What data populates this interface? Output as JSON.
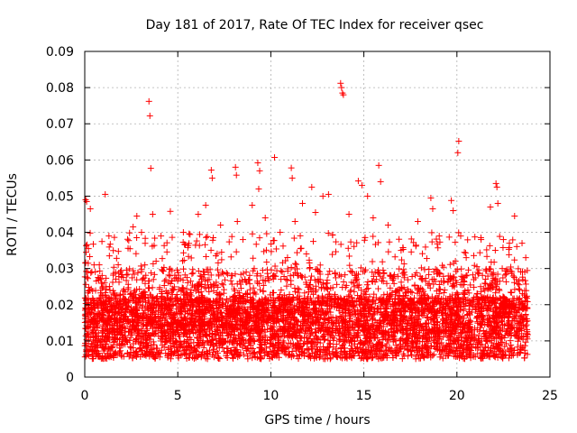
{
  "chart_data": {
    "type": "scatter",
    "title": "Day 181 of 2017, Rate Of TEC Index for receiver qsec",
    "xlabel": "GPS time / hours",
    "ylabel": "ROTI / TECUs",
    "xlim": [
      0,
      25
    ],
    "ylim": [
      0,
      0.09
    ],
    "x_ticks": [
      0,
      5,
      10,
      15,
      20,
      25
    ],
    "y_ticks": [
      0,
      0.01,
      0.02,
      0.03,
      0.04,
      0.05,
      0.06,
      0.07,
      0.08,
      0.09
    ],
    "x_tick_labels": [
      "0",
      "5",
      "10",
      "15",
      "20",
      "25"
    ],
    "y_tick_labels": [
      "0",
      "0.01",
      "0.02",
      "0.03",
      "0.04",
      "0.05",
      "0.06",
      "0.07",
      "0.08",
      "0.09"
    ],
    "grid": true,
    "marker": "plus",
    "marker_color": "#ff0000",
    "series": [
      {
        "points": [
          [
            0.05,
            0.049
          ],
          [
            0.1,
            0.0485
          ],
          [
            0.2,
            0.0355
          ],
          [
            0.3,
            0.0465
          ],
          [
            0.5,
            0.031
          ],
          [
            1.1,
            0.0505
          ],
          [
            1.3,
            0.039
          ],
          [
            2.6,
            0.0415
          ],
          [
            2.8,
            0.0445
          ],
          [
            3.05,
            0.04
          ],
          [
            3.45,
            0.0762
          ],
          [
            3.5,
            0.0722
          ],
          [
            3.55,
            0.0577
          ],
          [
            3.65,
            0.045
          ],
          [
            4.1,
            0.039
          ],
          [
            4.6,
            0.0458
          ],
          [
            5.3,
            0.04
          ],
          [
            6.1,
            0.045
          ],
          [
            6.5,
            0.0475
          ],
          [
            6.8,
            0.0572
          ],
          [
            6.85,
            0.055
          ],
          [
            7.3,
            0.042
          ],
          [
            8.1,
            0.058
          ],
          [
            8.15,
            0.0558
          ],
          [
            8.2,
            0.043
          ],
          [
            8.5,
            0.038
          ],
          [
            9.0,
            0.0475
          ],
          [
            9.3,
            0.0592
          ],
          [
            9.4,
            0.057
          ],
          [
            9.35,
            0.052
          ],
          [
            9.7,
            0.044
          ],
          [
            10.2,
            0.0607
          ],
          [
            10.5,
            0.04
          ],
          [
            11.1,
            0.0578
          ],
          [
            11.15,
            0.055
          ],
          [
            11.3,
            0.043
          ],
          [
            11.7,
            0.048
          ],
          [
            12.2,
            0.0525
          ],
          [
            12.4,
            0.0455
          ],
          [
            12.8,
            0.05
          ],
          [
            13.1,
            0.0505
          ],
          [
            13.75,
            0.0812
          ],
          [
            13.8,
            0.08
          ],
          [
            13.85,
            0.0785
          ],
          [
            13.9,
            0.078
          ],
          [
            14.2,
            0.045
          ],
          [
            14.7,
            0.0542
          ],
          [
            14.9,
            0.053
          ],
          [
            15.2,
            0.05
          ],
          [
            15.5,
            0.044
          ],
          [
            15.8,
            0.0585
          ],
          [
            15.9,
            0.054
          ],
          [
            16.3,
            0.042
          ],
          [
            17.0,
            0.035
          ],
          [
            17.9,
            0.043
          ],
          [
            18.6,
            0.0495
          ],
          [
            18.7,
            0.0465
          ],
          [
            19.7,
            0.0488
          ],
          [
            19.8,
            0.046
          ],
          [
            20.1,
            0.0652
          ],
          [
            20.05,
            0.062
          ],
          [
            20.5,
            0.033
          ],
          [
            21.3,
            0.038
          ],
          [
            21.8,
            0.047
          ],
          [
            22.1,
            0.0535
          ],
          [
            22.15,
            0.0525
          ],
          [
            22.2,
            0.048
          ],
          [
            22.5,
            0.038
          ],
          [
            23.1,
            0.0445
          ],
          [
            23.5,
            0.037
          ],
          [
            23.7,
            0.033
          ]
        ]
      }
    ]
  }
}
